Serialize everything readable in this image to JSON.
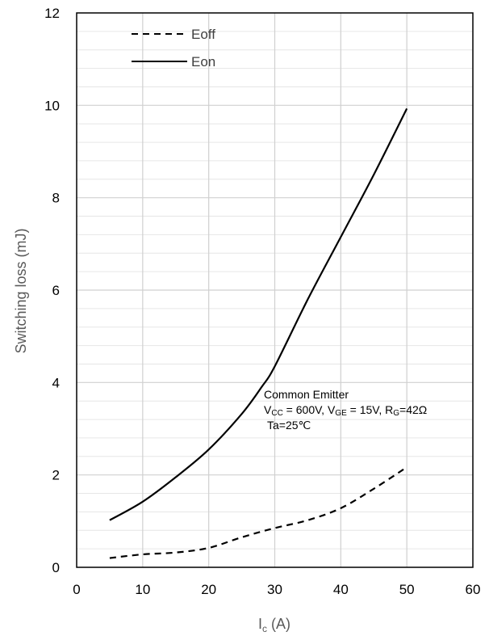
{
  "chart_data": {
    "type": "line",
    "xlabel": "I",
    "xlabel_sub": "c",
    "xlabel_unit": " (A)",
    "ylabel": "Switching loss (mJ)",
    "xlim": [
      0,
      60
    ],
    "ylim": [
      0,
      12
    ],
    "x_ticks": [
      "0",
      "10",
      "20",
      "30",
      "40",
      "50",
      "60"
    ],
    "y_ticks": [
      "0",
      "2",
      "4",
      "6",
      "8",
      "10",
      "12"
    ],
    "minor_grid_y_step": 0.4,
    "grid": true,
    "legend_position": "top-left",
    "series": [
      {
        "name": "Eoff",
        "style": "dashed",
        "color": "#000000",
        "x": [
          5,
          10,
          15,
          20,
          25,
          30,
          35,
          40,
          45,
          49.5
        ],
        "y": [
          0.2,
          0.28,
          0.32,
          0.42,
          0.65,
          0.85,
          1.02,
          1.28,
          1.7,
          2.12
        ]
      },
      {
        "name": "Eon",
        "style": "solid",
        "color": "#000000",
        "x": [
          5,
          10,
          15,
          20,
          25,
          28,
          30,
          35,
          40,
          45,
          50
        ],
        "y": [
          1.02,
          1.42,
          1.95,
          2.55,
          3.32,
          3.9,
          4.35,
          5.8,
          7.15,
          8.5,
          9.93
        ]
      }
    ],
    "annotation": {
      "line1": "Common Emitter",
      "line2": {
        "v": "V",
        "vcc_sub": "CC",
        "vcc_val": " = 600V, ",
        "vge_sub": "GE",
        "vge_val": " = 15V, ",
        "r": "R",
        "rg_sub": "G",
        "rg_val": "=42Ω"
      },
      "line3": "Ta=25℃"
    }
  }
}
